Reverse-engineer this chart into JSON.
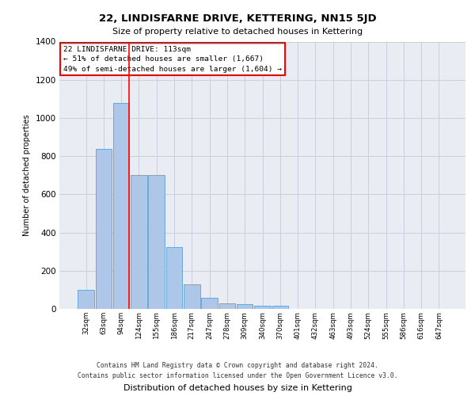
{
  "title": "22, LINDISFARNE DRIVE, KETTERING, NN15 5JD",
  "subtitle": "Size of property relative to detached houses in Kettering",
  "xlabel": "Distribution of detached houses by size in Kettering",
  "ylabel": "Number of detached properties",
  "footer_line1": "Contains HM Land Registry data © Crown copyright and database right 2024.",
  "footer_line2": "Contains public sector information licensed under the Open Government Licence v3.0.",
  "bin_labels": [
    "32sqm",
    "63sqm",
    "94sqm",
    "124sqm",
    "155sqm",
    "186sqm",
    "217sqm",
    "247sqm",
    "278sqm",
    "309sqm",
    "340sqm",
    "370sqm",
    "401sqm",
    "432sqm",
    "463sqm",
    "493sqm",
    "524sqm",
    "555sqm",
    "586sqm",
    "616sqm",
    "647sqm"
  ],
  "bar_values": [
    100,
    840,
    1080,
    700,
    700,
    325,
    130,
    60,
    30,
    25,
    15,
    15,
    0,
    0,
    0,
    0,
    0,
    0,
    0,
    0,
    0
  ],
  "bar_color": "#aec6e8",
  "bar_edge_color": "#5a9fd4",
  "grid_color": "#c8d0dc",
  "background_color": "#eaecf4",
  "red_line_x": 2.45,
  "annotation_title": "22 LINDISFARNE DRIVE: 113sqm",
  "annotation_line2": "← 51% of detached houses are smaller (1,667)",
  "annotation_line3": "49% of semi-detached houses are larger (1,604) →",
  "ylim": [
    0,
    1400
  ],
  "yticks": [
    0,
    200,
    400,
    600,
    800,
    1000,
    1200,
    1400
  ]
}
